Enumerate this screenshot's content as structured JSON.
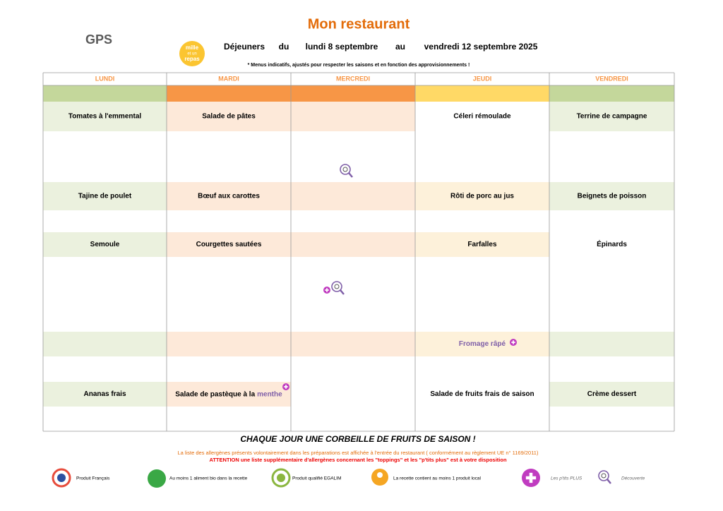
{
  "header": {
    "title": "Mon restaurant",
    "subtitle": [
      "Déjeuners",
      "du",
      "lundi 8 septembre",
      "au",
      "vendredi 12 septembre 2025"
    ],
    "note": "* Menus indicatifs, ajustés pour respecter les saisons et en fonction des approvisionnements !",
    "logo": "GPS",
    "badge": [
      "mille",
      "et un",
      "repas"
    ]
  },
  "table": {
    "days": [
      "LUNDI",
      "MARDI",
      "MERCREDI",
      "JEUDI",
      "VENDREDI"
    ],
    "rows": [
      [
        "Tomates à l'emmental",
        "Salade de pâtes",
        null,
        "Céleri rémoulade",
        "Terrine de campagne"
      ],
      [
        "Tajine de poulet",
        "Bœuf aux carottes",
        null,
        "Rôti de porc au jus",
        "Beignets de poisson"
      ],
      [
        "Semoule",
        "Courgettes sautées",
        null,
        "Farfalles",
        "Épinards"
      ],
      [
        null,
        null,
        null,
        "Fromage râpé",
        null
      ],
      [
        "Ananas frais",
        {
          "text": "Salade de pastèque à la",
          "highlight": "menthe"
        },
        null,
        "Salade de fruits frais de saison",
        "Crème dessert"
      ]
    ]
  },
  "footer": {
    "banner": "CHAQUE JOUR UNE CORBEILLE DE FRUITS DE SAISON !",
    "allergens": "La liste des allergènes présents volontairement dans les préparations est affichée à l'entrée du restaurant ( conformément au règlement UE n° 1169/2011)",
    "warning": "ATTENTION une liste supplémentaire d'allergènes concernant les \"toppings\" et les \"p'tits plus\" est à votre disposition"
  },
  "legend": [
    "Produit Français",
    "Au moins 1 aliment bio dans la recette",
    "Produit qualifié EGALIM",
    "La recette contient au moins 1 produit local",
    "Les p'tits PLUS",
    "Découverte"
  ]
}
